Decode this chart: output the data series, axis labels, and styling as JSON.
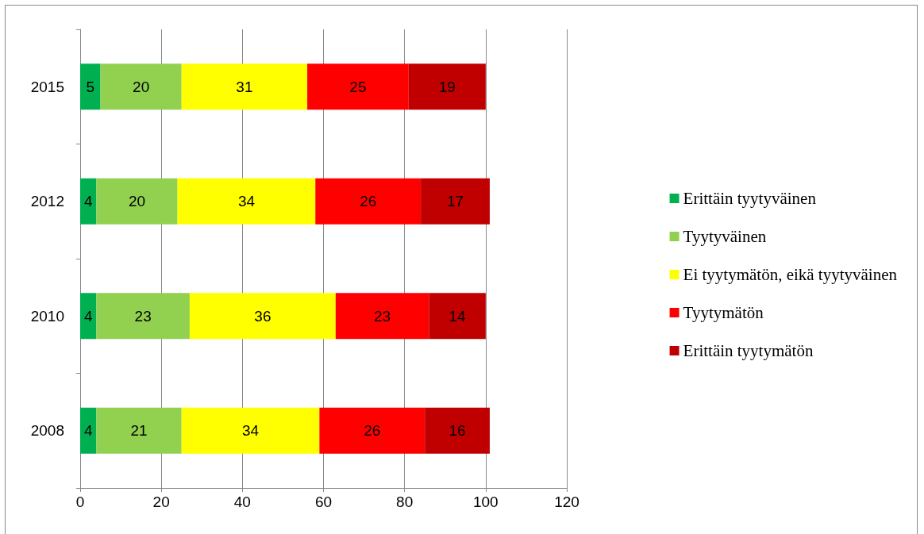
{
  "chart_data": {
    "type": "bar",
    "orientation": "horizontal",
    "stacked": true,
    "categories": [
      "2015",
      "2012",
      "2010",
      "2008"
    ],
    "series": [
      {
        "name": "Erittäin tyytyväinen",
        "color": "#00b050",
        "values": [
          5,
          4,
          4,
          4
        ]
      },
      {
        "name": "Tyytyväinen",
        "color": "#92d050",
        "values": [
          20,
          20,
          23,
          21
        ]
      },
      {
        "name": "Ei tyytymätön, eikä tyytyväinen",
        "color": "#ffff00",
        "values": [
          31,
          34,
          36,
          34
        ]
      },
      {
        "name": "Tyytymätön",
        "color": "#ff0000",
        "values": [
          25,
          26,
          23,
          26
        ]
      },
      {
        "name": "Erittäin tyytymätön",
        "color": "#c00000",
        "values": [
          19,
          17,
          14,
          16
        ]
      }
    ],
    "xlim": [
      0,
      120
    ],
    "xticks": [
      0,
      20,
      40,
      60,
      80,
      100,
      120
    ],
    "grid": "x",
    "legend": "right",
    "data_labels": true
  }
}
